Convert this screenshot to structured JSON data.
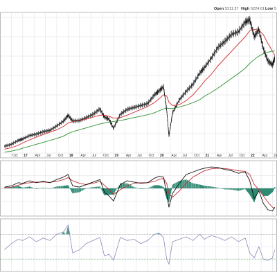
{
  "header": {
    "open_label": "Open",
    "open_value": "5211.37",
    "high_label": "High",
    "high_value": "5224.61",
    "low_label": "Low",
    "low_value": "5"
  },
  "colors": {
    "price": "#111111",
    "ma_fast": "#d63a3a",
    "ma_slow": "#3f9a3f",
    "macd_line": "#111111",
    "macd_signal": "#c0303a",
    "histogram": "#2f8a74",
    "rsi_line": "#8a8ab8",
    "rsi_fill": "#2f8a74",
    "grid": "#dcdce6",
    "panel_border": "#999999"
  },
  "chart_data": [
    {
      "type": "line",
      "panel": "price",
      "title": "",
      "grid": true,
      "x_ticks": [
        "Oct",
        "17",
        "Apr",
        "Jul",
        "Oct",
        "18",
        "Apr",
        "Jul",
        "Oct",
        "19",
        "Apr",
        "Jul",
        "Oct",
        "20",
        "Apr",
        "Jul",
        "Oct",
        "21",
        "Apr",
        "Jul",
        "Oct",
        "22",
        "Apr",
        "Jul"
      ],
      "x": [
        2016.6,
        2016.75,
        2016.9,
        2017.0,
        2017.15,
        2017.3,
        2017.45,
        2017.6,
        2017.75,
        2017.9,
        2018.0,
        2018.1,
        2018.25,
        2018.4,
        2018.55,
        2018.7,
        2018.8,
        2018.9,
        2019.0,
        2019.15,
        2019.3,
        2019.45,
        2019.6,
        2019.75,
        2019.9,
        2020.0,
        2020.1,
        2020.17,
        2020.22,
        2020.3,
        2020.45,
        2020.6,
        2020.75,
        2020.9,
        2021.0,
        2021.15,
        2021.3,
        2021.45,
        2021.6,
        2021.75,
        2021.9,
        2022.0,
        2022.1,
        2022.2,
        2022.3,
        2022.4,
        2022.5,
        2022.55
      ],
      "series": [
        {
          "values": [
            2140,
            2180,
            2260,
            2290,
            2360,
            2390,
            2440,
            2470,
            2560,
            2660,
            2780,
            2660,
            2670,
            2730,
            2800,
            2910,
            2740,
            2700,
            2510,
            2800,
            2900,
            2940,
            2980,
            3020,
            3200,
            3280,
            3370,
            2900,
            2350,
            2830,
            3100,
            3270,
            3420,
            3650,
            3760,
            3950,
            4180,
            4300,
            4450,
            4500,
            4700,
            4750,
            4400,
            4550,
            4150,
            3900,
            3820,
            3950
          ]
        },
        {
          "values": [
            2080,
            2110,
            2160,
            2210,
            2270,
            2330,
            2380,
            2430,
            2480,
            2550,
            2620,
            2650,
            2670,
            2700,
            2740,
            2780,
            2780,
            2760,
            2720,
            2730,
            2780,
            2840,
            2900,
            2960,
            3040,
            3120,
            3200,
            3180,
            3050,
            2980,
            3000,
            3080,
            3200,
            3360,
            3480,
            3620,
            3800,
            3950,
            4100,
            4250,
            4400,
            4520,
            4550,
            4540,
            4440,
            4260,
            4100,
            4020
          ]
        },
        {
          "values": [
            2020,
            2040,
            2070,
            2100,
            2140,
            2180,
            2220,
            2260,
            2300,
            2350,
            2400,
            2440,
            2480,
            2520,
            2560,
            2600,
            2620,
            2640,
            2650,
            2670,
            2700,
            2730,
            2760,
            2790,
            2830,
            2870,
            2910,
            2930,
            2920,
            2920,
            2950,
            2990,
            3040,
            3100,
            3170,
            3250,
            3340,
            3440,
            3540,
            3640,
            3750,
            3850,
            3930,
            4000,
            4050,
            4080,
            4100,
            4110
          ]
        }
      ],
      "ylim": [
        1900,
        4900
      ]
    },
    {
      "type": "line",
      "panel": "macd",
      "grid": true,
      "x": [
        2016.6,
        2016.75,
        2016.9,
        2017.0,
        2017.15,
        2017.3,
        2017.45,
        2017.6,
        2017.75,
        2017.9,
        2018.0,
        2018.1,
        2018.25,
        2018.4,
        2018.55,
        2018.7,
        2018.8,
        2018.9,
        2019.0,
        2019.15,
        2019.3,
        2019.45,
        2019.6,
        2019.75,
        2019.9,
        2020.0,
        2020.1,
        2020.17,
        2020.22,
        2020.3,
        2020.45,
        2020.6,
        2020.75,
        2020.9,
        2021.0,
        2021.15,
        2021.3,
        2021.45,
        2021.6,
        2021.75,
        2021.9,
        2022.0,
        2022.1,
        2022.2,
        2022.3,
        2022.4,
        2022.5,
        2022.55
      ],
      "series": [
        {
          "values": [
            10,
            20,
            45,
            40,
            60,
            45,
            55,
            45,
            70,
            90,
            110,
            20,
            10,
            30,
            50,
            70,
            -30,
            -60,
            -100,
            30,
            60,
            50,
            40,
            45,
            80,
            95,
            90,
            -40,
            -150,
            -40,
            40,
            110,
            130,
            150,
            160,
            170,
            165,
            150,
            140,
            120,
            130,
            60,
            -80,
            -20,
            -120,
            -170,
            -180,
            -150
          ]
        },
        {
          "values": [
            5,
            10,
            25,
            35,
            45,
            50,
            50,
            48,
            55,
            70,
            85,
            60,
            40,
            30,
            40,
            55,
            25,
            -10,
            -50,
            -10,
            20,
            40,
            45,
            45,
            55,
            70,
            80,
            40,
            -40,
            -70,
            -20,
            40,
            90,
            120,
            140,
            155,
            160,
            158,
            150,
            140,
            135,
            110,
            30,
            -10,
            -60,
            -110,
            -150,
            -160
          ]
        }
      ],
      "histogram": [
        5,
        10,
        20,
        5,
        15,
        -5,
        5,
        -3,
        15,
        20,
        25,
        -40,
        -30,
        0,
        10,
        15,
        -55,
        -50,
        -50,
        40,
        40,
        10,
        -5,
        0,
        25,
        25,
        10,
        -80,
        -110,
        30,
        60,
        70,
        40,
        30,
        20,
        15,
        5,
        -8,
        -10,
        -20,
        -5,
        -50,
        -110,
        -10,
        -60,
        -60,
        -30,
        10
      ],
      "ylim": [
        -220,
        220
      ]
    },
    {
      "type": "line",
      "panel": "rsi",
      "grid": true,
      "x": [
        2016.6,
        2016.75,
        2016.9,
        2017.0,
        2017.15,
        2017.3,
        2017.45,
        2017.6,
        2017.75,
        2017.9,
        2018.0,
        2018.1,
        2018.25,
        2018.4,
        2018.55,
        2018.7,
        2018.8,
        2018.9,
        2019.0,
        2019.15,
        2019.3,
        2019.45,
        2019.6,
        2019.75,
        2019.9,
        2020.0,
        2020.1,
        2020.17,
        2020.22,
        2020.3,
        2020.45,
        2020.6,
        2020.75,
        2020.9,
        2021.0,
        2021.15,
        2021.3,
        2021.45,
        2021.6,
        2021.75,
        2021.9,
        2022.0,
        2022.1,
        2022.2,
        2022.3,
        2022.4,
        2022.5,
        2022.55
      ],
      "series": [
        {
          "values": [
            45,
            55,
            62,
            60,
            66,
            58,
            64,
            60,
            70,
            74,
            85,
            40,
            45,
            55,
            60,
            65,
            35,
            38,
            28,
            65,
            60,
            62,
            55,
            60,
            70,
            72,
            65,
            30,
            22,
            58,
            62,
            66,
            60,
            70,
            62,
            68,
            65,
            60,
            66,
            58,
            64,
            40,
            32,
            50,
            30,
            28,
            32,
            45
          ]
        }
      ],
      "overbought": 70,
      "oversold": 30,
      "ylim": [
        10,
        95
      ]
    }
  ]
}
